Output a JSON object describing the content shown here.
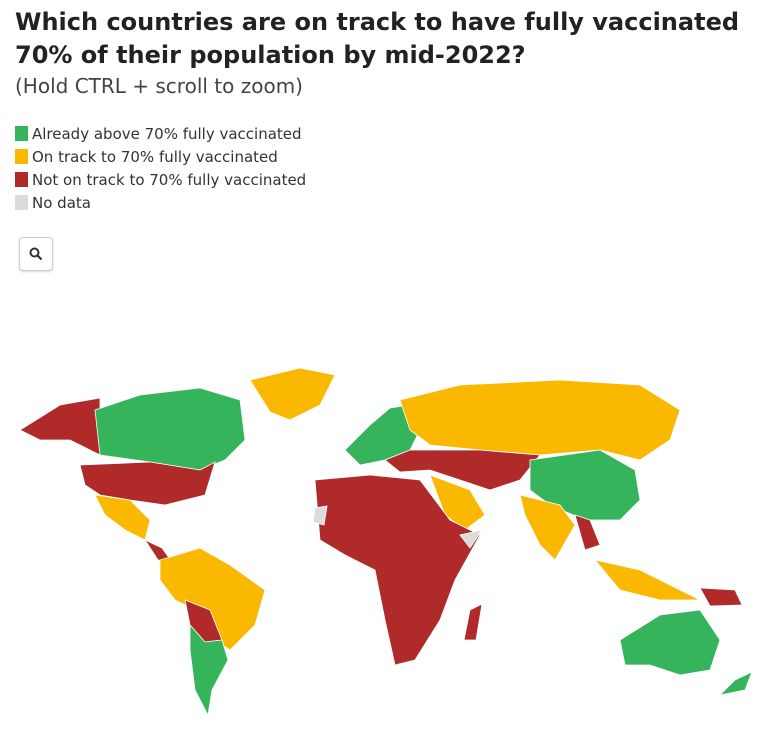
{
  "title": "Which countries are on track to have fully vaccinated 70% of their population by mid-2022?",
  "subtitle": "(Hold CTRL + scroll to zoom)",
  "legend": [
    {
      "label": "Already above 70% fully vaccinated",
      "color": "#35b45c"
    },
    {
      "label": "On track to 70% fully vaccinated",
      "color": "#fbb800"
    },
    {
      "label": "Not on track to 70% fully vaccinated",
      "color": "#b02a2a"
    },
    {
      "label": "No data",
      "color": "#dcdcdc"
    }
  ]
}
